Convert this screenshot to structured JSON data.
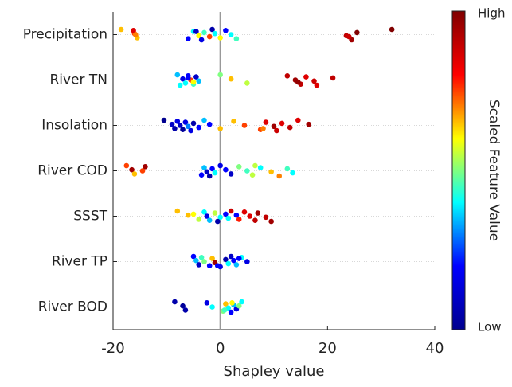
{
  "chart_data": {
    "type": "beeswarm",
    "xlabel": "Shapley value",
    "colorbar_label": "Scaled Feature Value",
    "colorbar_high": "High",
    "colorbar_low": "Low",
    "colormap": [
      "#00008f",
      "#0000ff",
      "#00ffff",
      "#ffff00",
      "#ff0000",
      "#800000"
    ],
    "color_range": [
      0,
      1
    ],
    "xlim": [
      -20,
      40
    ],
    "xticks": [
      -20,
      0,
      20,
      40
    ],
    "reference_line_x": 0,
    "series": [
      {
        "name": "Precipitation",
        "values": [
          -18.5,
          -16,
          -15.5,
          -16.2,
          -15.8,
          -6,
          -5,
          -4,
          -3.5,
          -3,
          -2,
          -1.5,
          -1,
          0,
          1,
          2,
          3,
          -4.5,
          23.5,
          24.5,
          25.5,
          24,
          32
        ],
        "feature_values": [
          0.65,
          0.75,
          0.65,
          0.85,
          0.7,
          0.2,
          0.4,
          0.6,
          0.15,
          0.45,
          0.75,
          0.05,
          0.4,
          0.6,
          0.2,
          0.4,
          0.45,
          0.1,
          0.9,
          0.95,
          1,
          0.88,
          1
        ]
      },
      {
        "name": "River TN",
        "values": [
          -8,
          -7,
          -6.5,
          -6,
          -5.5,
          -5,
          -4.5,
          -4,
          -7.5,
          -6,
          -5,
          0,
          2,
          5,
          12.5,
          14,
          15,
          16,
          17.5,
          18,
          21,
          14.5
        ],
        "feature_values": [
          0.35,
          0.15,
          0.4,
          0.2,
          0.75,
          0.45,
          0.1,
          0.35,
          0.4,
          0.2,
          0.6,
          0.5,
          0.65,
          0.55,
          0.9,
          0.95,
          0.9,
          0.85,
          0.88,
          0.85,
          0.9,
          0.97
        ]
      },
      {
        "name": "Insolation",
        "values": [
          -10.5,
          -9,
          -8.5,
          -8,
          -7.5,
          -7,
          -6.5,
          -6,
          -5.5,
          -5,
          -4,
          -3,
          -2,
          0,
          2.5,
          4.5,
          7.5,
          8.5,
          10,
          10.5,
          11.5,
          13,
          14.5,
          16.5,
          8
        ],
        "feature_values": [
          0,
          0.1,
          0.05,
          0.15,
          0.1,
          0.02,
          0.15,
          0.3,
          0.15,
          0.05,
          0.2,
          0.35,
          0.2,
          0.65,
          0.65,
          0.75,
          0.75,
          0.85,
          0.95,
          0.88,
          0.85,
          0.9,
          0.85,
          0.95,
          0.7
        ]
      },
      {
        "name": "River COD",
        "values": [
          -17.5,
          -16.5,
          -16,
          -14,
          -14.5,
          -3.5,
          -3,
          -2.5,
          -2,
          -1.5,
          -1,
          0,
          1,
          2,
          3.5,
          5,
          6,
          7.5,
          9.5,
          11,
          12.5,
          13.5,
          6.5
        ],
        "feature_values": [
          0.75,
          0.95,
          0.65,
          0.95,
          0.75,
          0.2,
          0.35,
          0.1,
          0.05,
          0.2,
          0.4,
          0.15,
          0.2,
          0.1,
          0.5,
          0.45,
          0.55,
          0.4,
          0.65,
          0.7,
          0.45,
          0.4,
          0.55
        ]
      },
      {
        "name": "SSST",
        "values": [
          -8,
          -6,
          -4,
          -3,
          -2.5,
          -2,
          -1,
          0,
          -0.5,
          1,
          1.5,
          2,
          3,
          3.5,
          4.5,
          5.5,
          6.5,
          7,
          8.5,
          9.5,
          -5
        ],
        "feature_values": [
          0.65,
          0.65,
          0.55,
          0.4,
          0.15,
          0.35,
          0.55,
          0.4,
          0.05,
          0.2,
          0.4,
          0.88,
          0.2,
          0.78,
          0.85,
          0.85,
          0.9,
          0.95,
          0.9,
          0.95,
          0.6
        ]
      },
      {
        "name": "River TP",
        "values": [
          -5,
          -4.5,
          -4,
          -3.5,
          -3,
          -2,
          -1.5,
          -1,
          0,
          1,
          1.5,
          2,
          2.5,
          3,
          4,
          5,
          -0.5,
          3.5
        ],
        "feature_values": [
          0.2,
          0.35,
          0.1,
          0.45,
          0.5,
          0.2,
          0.65,
          0.95,
          0.15,
          0.05,
          0.4,
          0.1,
          0.2,
          0.35,
          0.4,
          0.15,
          0.2,
          0.2
        ]
      },
      {
        "name": "River BOD",
        "values": [
          -8.5,
          -7,
          -6.5,
          -2.5,
          -1.5,
          0.5,
          1,
          1.5,
          2,
          2.5,
          3,
          4,
          3.5,
          0.8,
          2.2
        ],
        "feature_values": [
          0.05,
          0.02,
          0.05,
          0.15,
          0.4,
          0.5,
          0.65,
          0.4,
          0.2,
          0.35,
          0.15,
          0.4,
          0.5,
          0.45,
          0.6
        ]
      }
    ]
  }
}
